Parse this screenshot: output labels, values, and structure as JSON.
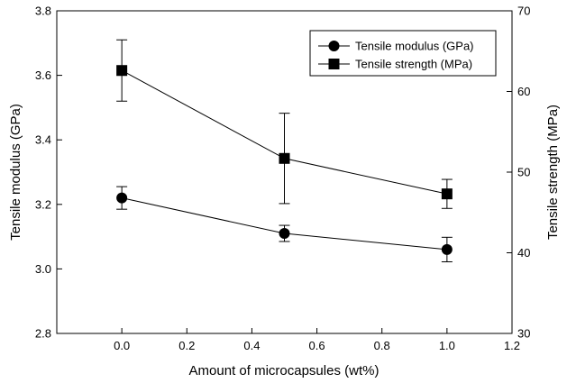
{
  "chart_data": {
    "type": "line",
    "xlabel": "Amount of microcapsules (wt%)",
    "ylabel_left": "Tensile modulus (GPa)",
    "ylabel_right": "Tensile strength (MPa)",
    "xlim": [
      -0.2,
      1.2
    ],
    "ylim_left": [
      2.8,
      3.8
    ],
    "ylim_right": [
      30,
      70
    ],
    "x_ticks": [
      "0.0",
      "0.2",
      "0.4",
      "0.6",
      "0.8",
      "1.0",
      "1.2"
    ],
    "y_left_ticks": [
      "2.8",
      "3.0",
      "3.2",
      "3.4",
      "3.6",
      "3.8"
    ],
    "y_right_ticks": [
      "30",
      "40",
      "50",
      "60",
      "70"
    ],
    "legend_position": "top-right",
    "grid": false,
    "series": [
      {
        "name": "Tensile modulus (GPa)",
        "axis": "left",
        "marker": "circle",
        "x": [
          0.0,
          0.5,
          1.0
        ],
        "y": [
          3.22,
          3.11,
          3.06
        ],
        "err": [
          0.035,
          0.025,
          0.038
        ]
      },
      {
        "name": "Tensile strength (MPa)",
        "axis": "right",
        "marker": "square",
        "x": [
          0.0,
          0.5,
          1.0
        ],
        "y": [
          62.6,
          51.7,
          47.3
        ],
        "err": [
          3.8,
          5.6,
          1.8
        ]
      }
    ]
  }
}
